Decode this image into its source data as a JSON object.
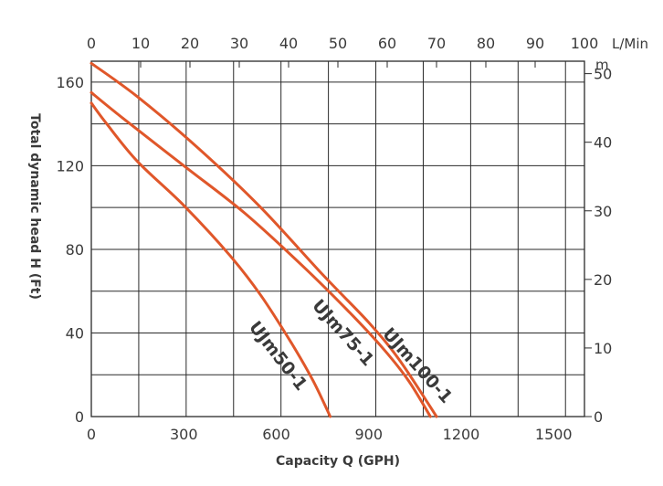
{
  "chart_data": {
    "type": "line",
    "title": "",
    "xlabel": "Capacity Q (GPH)",
    "ylabel": "Total dynamic head H (Ft)",
    "x_top_unit": "L/Min",
    "y_right_unit": "m",
    "xlim": [
      0,
      1600
    ],
    "ylim": [
      0,
      170
    ],
    "x_ticks": [
      0,
      300,
      600,
      900,
      1200,
      1500
    ],
    "y_ticks": [
      0,
      40,
      80,
      120,
      160
    ],
    "x_top_ticks": [
      0,
      10,
      20,
      30,
      40,
      50,
      60,
      70,
      80,
      90,
      100
    ],
    "y_right_ticks": [
      0,
      10,
      20,
      30,
      40,
      50
    ],
    "grid": true,
    "line_color": "#e0572a",
    "series": [
      {
        "name": "UJm50-1",
        "x": [
          0,
          50,
          150,
          300,
          450,
          550,
          650,
          720,
          775
        ],
        "y": [
          150,
          140,
          122,
          101,
          77,
          58,
          35,
          17,
          0
        ]
      },
      {
        "name": "UJm75-1",
        "x": [
          0,
          100,
          300,
          500,
          700,
          850,
          950,
          1030,
          1100
        ],
        "y": [
          155,
          143,
          120,
          97,
          70,
          48,
          32,
          17,
          0
        ]
      },
      {
        "name": "UJm100-1",
        "x": [
          0,
          150,
          350,
          550,
          750,
          900,
          1000,
          1120
        ],
        "y": [
          169,
          153,
          128,
          100,
          68,
          45,
          27,
          0
        ]
      }
    ]
  }
}
